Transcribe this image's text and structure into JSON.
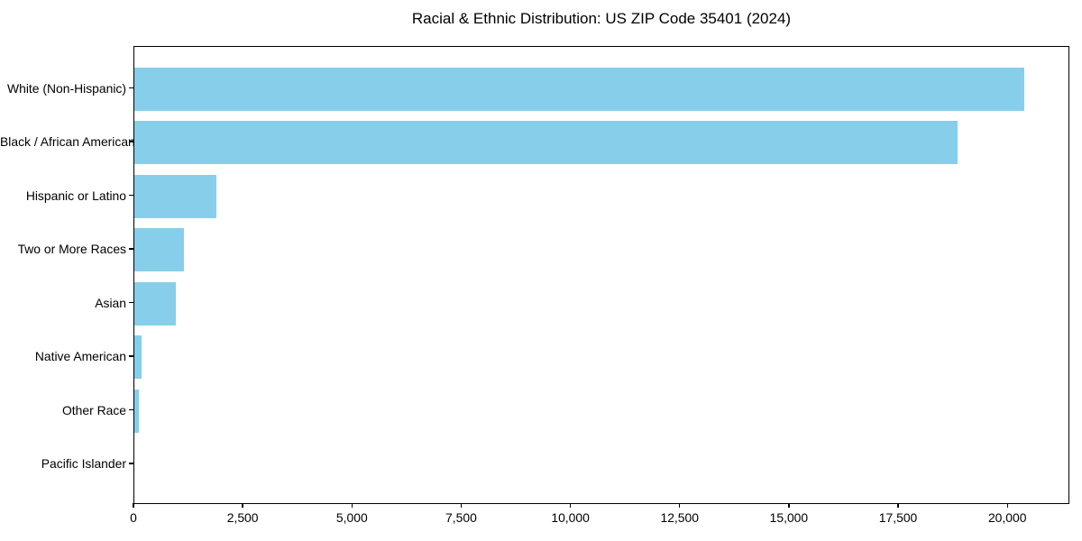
{
  "figure": {
    "background_color": "#ffffff"
  },
  "chart_data": {
    "type": "bar",
    "orientation": "horizontal",
    "title": "Racial & Ethnic Distribution: US ZIP Code 35401 (2024)",
    "xlabel": "",
    "ylabel": "",
    "categories": [
      "White (Non-Hispanic)",
      "Black / African American",
      "Hispanic or Latino",
      "Two or More Races",
      "Asian",
      "Native American",
      "Other Race",
      "Pacific Islander"
    ],
    "values": [
      20400,
      18870,
      1880,
      1140,
      950,
      170,
      100,
      0
    ],
    "xlim": [
      0,
      21420
    ],
    "x_ticks": [
      0,
      2500,
      5000,
      7500,
      10000,
      12500,
      15000,
      17500,
      20000
    ],
    "x_tick_labels": [
      "0",
      "2,500",
      "5,000",
      "7,500",
      "10,000",
      "12,500",
      "15,000",
      "17,500",
      "20,000"
    ],
    "grid": false,
    "legend": null,
    "bar_color": "#87CEEB",
    "axis_color": "#000000",
    "text_color": "#000000"
  }
}
